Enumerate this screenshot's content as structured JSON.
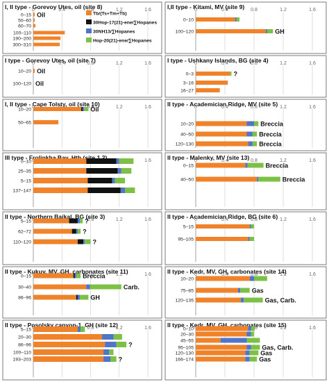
{
  "colors": {
    "tb": "#f0822a",
    "hop30": "#111111",
    "nh13": "#4f74c9",
    "hop20": "#7cc146",
    "frame": "#6b6b6b",
    "grid": "#c8c8c8",
    "axis_text": "#666666"
  },
  "legend": [
    {
      "label": "Tb/(Ts+Tm+Tb)",
      "color": "#f0822a"
    },
    {
      "label": "30Hop-17(21)-ene/∑Hopanes",
      "color": "#111111"
    },
    {
      "label": "30NH13/∑Hopanes",
      "color": "#4f74c9"
    },
    {
      "label": "Hop-20(21)-ene/∑Hopanes",
      "color": "#7cc146"
    }
  ],
  "chart_data": [
    {
      "type": "bar",
      "title": "I, II type - Gorevoy Utes, oil (site 8)",
      "xticks": [
        "0",
        "0.4",
        "0.8",
        "1.2",
        "1.6"
      ],
      "xlim": [
        0,
        1.6
      ],
      "categories": [
        "0–15",
        "50–60",
        "60–70",
        "100–110",
        "190–200",
        "300–310"
      ],
      "series": [
        {
          "name": "Tb/(Ts+Tm+Tb)",
          "values": [
            0.02,
            0.02,
            0.03,
            0.44,
            0.38,
            0.37
          ]
        },
        {
          "name": "30Hop-17(21)-ene/∑Hopanes",
          "values": [
            0,
            0,
            0,
            0,
            0,
            0
          ]
        },
        {
          "name": "30NH13/∑Hopanes",
          "values": [
            0,
            0,
            0,
            0,
            0,
            0
          ]
        },
        {
          "name": "Hop-20(21)-ene/∑Hopanes",
          "values": [
            0,
            0,
            0,
            0,
            0,
            0
          ]
        }
      ],
      "annotations": [
        {
          "text": "Oil",
          "row": 0
        }
      ]
    },
    {
      "type": "bar",
      "title": "I,II type - Kitami, MV (site 9)",
      "xticks": [
        "0",
        "0.4",
        "0.8",
        "1.2",
        "1.6"
      ],
      "xlim": [
        0,
        1.6
      ],
      "categories": [
        "0–10",
        "100–120"
      ],
      "series": [
        {
          "name": "Tb/(Ts+Tm+Tb)",
          "values": [
            0.54,
            0.96
          ]
        },
        {
          "name": "30Hop-17(21)-ene/∑Hopanes",
          "values": [
            0,
            0
          ]
        },
        {
          "name": "30NH13/∑Hopanes",
          "values": [
            0.02,
            0.02
          ]
        },
        {
          "name": "Hop-20(21)-ene/∑Hopanes",
          "values": [
            0.04,
            0.08
          ]
        }
      ],
      "annotations": [
        {
          "text": "GH",
          "row": 1
        }
      ]
    },
    {
      "type": "bar",
      "title": "I type - Gorevoy Utes, oil (site 7)",
      "xticks": [
        "0",
        "0.4",
        "0.8",
        "1.2",
        "1.6"
      ],
      "xlim": [
        0,
        1.6
      ],
      "categories": [
        "10–20",
        "100–120"
      ],
      "series": [
        {
          "name": "Tb/(Ts+Tm+Tb)",
          "values": [
            0.02,
            0
          ]
        },
        {
          "name": "30Hop-17(21)-ene/∑Hopanes",
          "values": [
            0,
            0
          ]
        },
        {
          "name": "30NH13/∑Hopanes",
          "values": [
            0,
            0
          ]
        },
        {
          "name": "Hop-20(21)-ene/∑Hopanes",
          "values": [
            0,
            0
          ]
        }
      ],
      "annotations": [
        {
          "text": "Oil",
          "row": 0
        },
        {
          "text": "Oil",
          "row": 1
        }
      ]
    },
    {
      "type": "bar",
      "title": "I type - Ushkany Islands, BG (site 4)",
      "xticks": [
        "0",
        "0.4",
        "0.8",
        "1.2",
        "1.6"
      ],
      "xlim": [
        0,
        1.6
      ],
      "categories": [
        "0–3",
        "3–16",
        "16–27"
      ],
      "series": [
        {
          "name": "Tb/(Ts+Tm+Tb)",
          "values": [
            0.47,
            0.44,
            0.33
          ]
        },
        {
          "name": "30Hop-17(21)-ene/∑Hopanes",
          "values": [
            0,
            0,
            0
          ]
        },
        {
          "name": "30NH13/∑Hopanes",
          "values": [
            0,
            0,
            0
          ]
        },
        {
          "name": "Hop-20(21)-ene/∑Hopanes",
          "values": [
            0.02,
            0,
            0
          ]
        }
      ],
      "annotations": [
        {
          "text": "?",
          "row": 0
        }
      ]
    },
    {
      "type": "bar",
      "title": "I, II type - Cape Tolsty, oil (site 10)",
      "xticks": [
        "0",
        "0.4",
        "0.8",
        "1.2",
        "1.6"
      ],
      "xlim": [
        0,
        1.6
      ],
      "categories": [
        "10–20",
        "50–65"
      ],
      "series": [
        {
          "name": "Tb/(Ts+Tm+Tb)",
          "values": [
            0.67,
            0.35
          ]
        },
        {
          "name": "30Hop-17(21)-ene/∑Hopanes",
          "values": [
            0.02,
            0
          ]
        },
        {
          "name": "30NH13/∑Hopanes",
          "values": [
            0.02,
            0
          ]
        },
        {
          "name": "Hop-20(21)-ene/∑Hopanes",
          "values": [
            0.06,
            0
          ]
        }
      ],
      "annotations": [
        {
          "text": "Oil",
          "row": 0
        }
      ]
    },
    {
      "type": "bar",
      "title": "II type - Academician Ridge, MV (site 5)",
      "xticks": [
        "0",
        "0.4",
        "0.8",
        "1.2",
        "1.6"
      ],
      "xlim": [
        0,
        1.6
      ],
      "categories": [
        "10–20",
        "40–50",
        "120–130"
      ],
      "series": [
        {
          "name": "Tb/(Ts+Tm+Tb)",
          "values": [
            0.7,
            0.7,
            0.72
          ]
        },
        {
          "name": "30Hop-17(21)-ene/∑Hopanes",
          "values": [
            0,
            0,
            0
          ]
        },
        {
          "name": "30NH13/∑Hopanes",
          "values": [
            0.1,
            0.08,
            0.06
          ]
        },
        {
          "name": "Hop-20(21)-ene/∑Hopanes",
          "values": [
            0.06,
            0.06,
            0.06
          ]
        }
      ],
      "annotations": [
        {
          "text": "Breccia",
          "row": 0
        },
        {
          "text": "Breccia",
          "row": 1
        },
        {
          "text": "Breccia",
          "row": 2
        }
      ]
    },
    {
      "type": "bar",
      "title": "III type - Frolinkha Bay, Hth (site 1,2)",
      "xticks": [
        "0",
        "0.4",
        "0.8",
        "1.2",
        "1.6"
      ],
      "xlim": [
        0,
        1.6
      ],
      "categories": [
        "0–10",
        "25–35",
        "5–15",
        "137–147"
      ],
      "series": [
        {
          "name": "Tb/(Ts+Tm+Tb)",
          "values": [
            0.74,
            0.74,
            0.76,
            0.76
          ]
        },
        {
          "name": "30Hop-17(21)-ene/∑Hopanes",
          "values": [
            0.42,
            0.44,
            0.34,
            0.46
          ]
        },
        {
          "name": "30NH13/∑Hopanes",
          "values": [
            0.04,
            0.05,
            0.04,
            0.06
          ]
        },
        {
          "name": "Hop-20(21)-ene/∑Hopanes",
          "values": [
            0.2,
            0.14,
            0.14,
            0.14
          ]
        }
      ],
      "annotations": []
    },
    {
      "type": "bar",
      "title": "II type - Malenky, MV (site 13)",
      "xticks": [
        "0",
        "0.4",
        "0.8",
        "1.2",
        "1.6"
      ],
      "xlim": [
        0,
        1.6
      ],
      "categories": [
        "0–15",
        "40–50"
      ],
      "series": [
        {
          "name": "Tb/(Ts+Tm+Tb)",
          "values": [
            0.68,
            0.84
          ]
        },
        {
          "name": "30Hop-17(21)-ene/∑Hopanes",
          "values": [
            0,
            0
          ]
        },
        {
          "name": "30NH13/∑Hopanes",
          "values": [
            0.03,
            0.02
          ]
        },
        {
          "name": "Hop-20(21)-ene/∑Hopanes",
          "values": [
            0.22,
            0.3
          ]
        }
      ],
      "annotations": [
        {
          "text": "Breccia",
          "row": 0
        },
        {
          "text": "Breccia",
          "row": 1
        }
      ]
    },
    {
      "type": "bar",
      "title": "II type - Northern Baikal, BG (site 3)",
      "xticks": [
        "0",
        "0.4",
        "0.8",
        "1.2",
        "1.6"
      ],
      "xlim": [
        0,
        1.6
      ],
      "categories": [
        "5–15",
        "62–72",
        "110–120"
      ],
      "series": [
        {
          "name": "Tb/(Ts+Tm+Tb)",
          "values": [
            0.5,
            0.54,
            0.62
          ]
        },
        {
          "name": "30Hop-17(21)-ene/∑Hopanes",
          "values": [
            0.12,
            0.06,
            0.08
          ]
        },
        {
          "name": "30NH13/∑Hopanes",
          "values": [
            0.03,
            0.02,
            0.02
          ]
        },
        {
          "name": "Hop-20(21)-ene/∑Hopanes",
          "values": [
            0.04,
            0.04,
            0.08
          ]
        }
      ],
      "annotations": [
        {
          "text": "?",
          "row": 0
        },
        {
          "text": "?",
          "row": 1
        },
        {
          "text": "?",
          "row": 2
        }
      ]
    },
    {
      "type": "bar",
      "title": "II type - Academician Ridge, BG (site 6)",
      "xticks": [
        "0",
        "0.4",
        "0.8",
        "1.2",
        "1.6"
      ],
      "xlim": [
        0,
        1.6
      ],
      "categories": [
        "5–15",
        "95–105"
      ],
      "series": [
        {
          "name": "Tb/(Ts+Tm+Tb)",
          "values": [
            0.74,
            0.72
          ]
        },
        {
          "name": "30Hop-17(21)-ene/∑Hopanes",
          "values": [
            0,
            0
          ]
        },
        {
          "name": "30NH13/∑Hopanes",
          "values": [
            0.02,
            0.02
          ]
        },
        {
          "name": "Hop-20(21)-ene/∑Hopanes",
          "values": [
            0.04,
            0.06
          ]
        }
      ],
      "annotations": []
    },
    {
      "type": "bar",
      "title": "II type - Kukuy, MV, GH, carbonates (site 11)",
      "xticks": [
        "0",
        "0.4",
        "0.8",
        "1.2",
        "1.6"
      ],
      "xlim": [
        0,
        1.6
      ],
      "categories": [
        "0–15",
        "30–40",
        "86–96"
      ],
      "series": [
        {
          "name": "Tb/(Ts+Tm+Tb)",
          "values": [
            0.56,
            0.74,
            0.6
          ]
        },
        {
          "name": "30Hop-17(21)-ene/∑Hopanes",
          "values": [
            0.02,
            0,
            0.02
          ]
        },
        {
          "name": "30NH13/∑Hopanes",
          "values": [
            0.02,
            0.05,
            0.03
          ]
        },
        {
          "name": "Hop-20(21)-ene/∑Hopanes",
          "values": [
            0.06,
            0.44,
            0.12
          ]
        }
      ],
      "annotations": [
        {
          "text": "Breccia",
          "row": 0
        },
        {
          "text": "Carb.",
          "row": 1
        },
        {
          "text": "GH",
          "row": 2
        }
      ]
    },
    {
      "type": "bar",
      "title": "II type - Kedr, MV, GH, carbonates (site 14)",
      "xticks": [
        "0",
        "0.4",
        "0.8",
        "1.2",
        "1.6"
      ],
      "xlim": [
        0,
        1.6
      ],
      "categories": [
        "10–20",
        "75–85",
        "120–135"
      ],
      "series": [
        {
          "name": "Tb/(Ts+Tm+Tb)",
          "values": [
            0.74,
            0.58,
            0.62
          ]
        },
        {
          "name": "30Hop-17(21)-ene/∑Hopanes",
          "values": [
            0,
            0,
            0
          ]
        },
        {
          "name": "30NH13/∑Hopanes",
          "values": [
            0.06,
            0.03,
            0.04
          ]
        },
        {
          "name": "Hop-20(21)-ene/∑Hopanes",
          "values": [
            0.18,
            0.13,
            0.26
          ]
        }
      ],
      "annotations": [
        {
          "text": "Gas",
          "row": 1
        },
        {
          "text": "Gas, Carb.",
          "row": 2
        }
      ]
    },
    {
      "type": "bar",
      "title": "II type - Posolsky canyon-1, GH (site 12)",
      "xticks": [
        "0",
        "0.4",
        "0.8",
        "1.2",
        "1.6"
      ],
      "xlim": [
        0,
        1.6
      ],
      "categories": [
        "5–15",
        "20–30",
        "86–96",
        "100–110",
        "193–203"
      ],
      "series": [
        {
          "name": "Tb/(Ts+Tm+Tb)",
          "values": [
            0.62,
            0.96,
            1.0,
            0.98,
            0.98
          ]
        },
        {
          "name": "30Hop-17(21)-ene/∑Hopanes",
          "values": [
            0,
            0,
            0,
            0,
            0
          ]
        },
        {
          "name": "30NH13/∑Hopanes",
          "values": [
            0.04,
            0.16,
            0.16,
            0.08,
            0.1
          ]
        },
        {
          "name": "Hop-20(21)-ene/∑Hopanes",
          "values": [
            0.06,
            0.12,
            0.14,
            0.06,
            0.08
          ]
        }
      ],
      "annotations": [
        {
          "text": "?",
          "row": 2
        },
        {
          "text": "?",
          "row": 4
        }
      ]
    },
    {
      "type": "bar",
      "title": "II type - Kedr, MV, GH, carbonates (site 15)",
      "xticks": [
        "0",
        "0.4",
        "0.8",
        "1.2",
        "1.6"
      ],
      "xlim": [
        0,
        1.6
      ],
      "categories": [
        "0–10",
        "20–30",
        "45–55",
        "95–105",
        "120–130",
        "166–174"
      ],
      "series": [
        {
          "name": "Tb/(Ts+Tm+Tb)",
          "values": [
            0.72,
            0.7,
            0.34,
            0.7,
            0.68,
            0.68
          ]
        },
        {
          "name": "30Hop-17(21)-ene/∑Hopanes",
          "values": [
            0,
            0,
            0,
            0,
            0,
            0
          ]
        },
        {
          "name": "30NH13/∑Hopanes",
          "values": [
            0.04,
            0.06,
            0.36,
            0.06,
            0.06,
            0.06
          ]
        },
        {
          "name": "Hop-20(21)-ene/∑Hopanes",
          "values": [
            0.05,
            0.04,
            0.18,
            0.12,
            0.12,
            0.1
          ]
        }
      ],
      "annotations": [
        {
          "text": "Gas, Carb.",
          "row": 3
        },
        {
          "text": "Gas",
          "row": 4
        },
        {
          "text": "Gas",
          "row": 5
        }
      ]
    }
  ]
}
